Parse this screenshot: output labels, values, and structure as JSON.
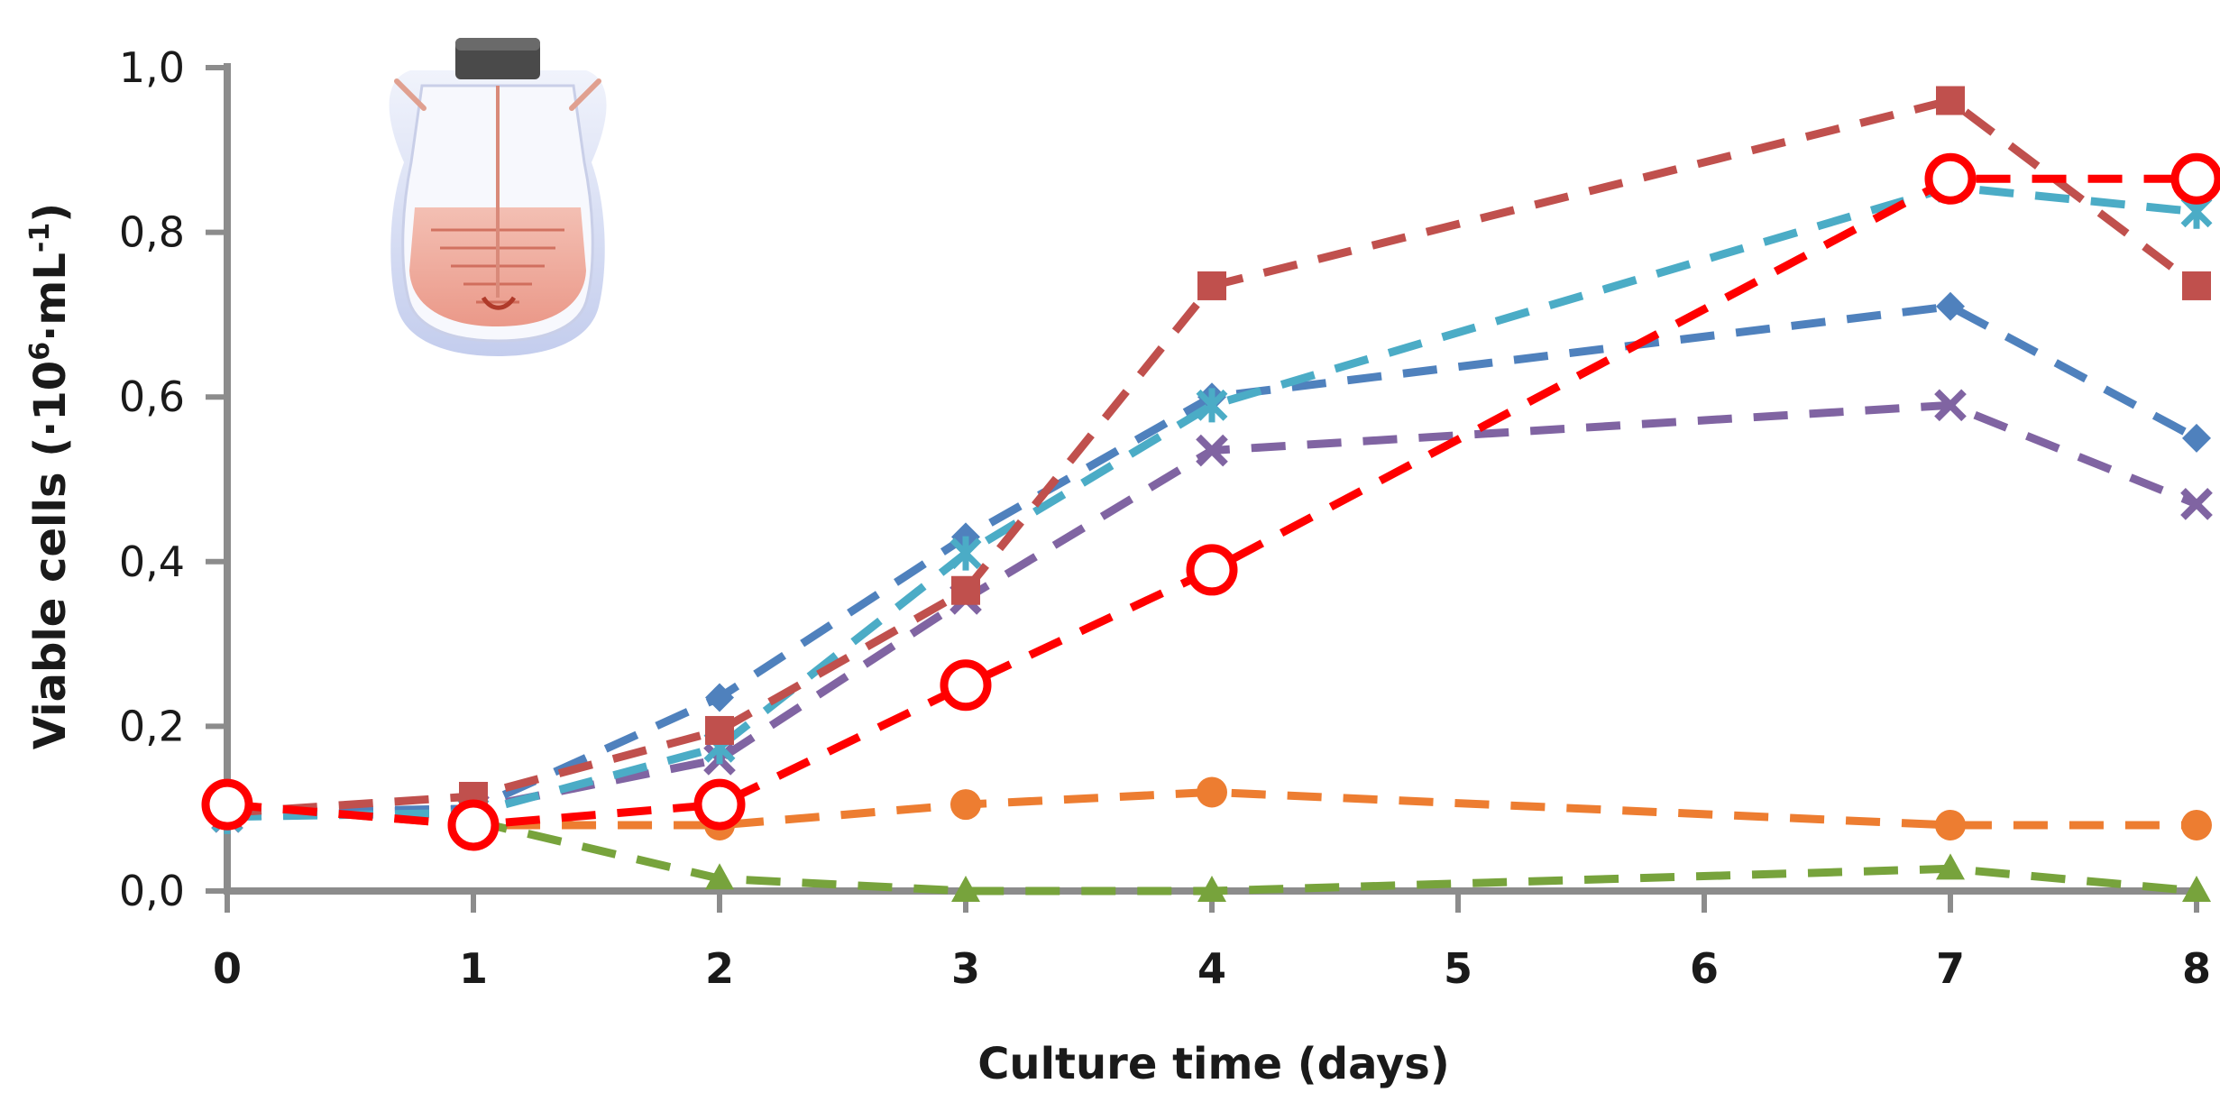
{
  "chart_data": {
    "type": "line",
    "title": "",
    "xlabel": "Culture time (days)",
    "ylabel_parts": [
      "Viable cells (·10",
      "6",
      "·mL",
      "-1",
      ")"
    ],
    "xlim": [
      0,
      8
    ],
    "ylim": [
      0,
      1.0
    ],
    "x_ticks": [
      0,
      1,
      2,
      3,
      4,
      5,
      6,
      7,
      8
    ],
    "x_tick_labels": [
      "0",
      "1",
      "2",
      "3",
      "4",
      "5",
      "6",
      "7",
      "8"
    ],
    "y_ticks": [
      0,
      0.2,
      0.4,
      0.6,
      0.8,
      1.0
    ],
    "y_tick_labels": [
      "0,0",
      "0,2",
      "0,4",
      "0,6",
      "0,8",
      "1,0"
    ],
    "grid": false,
    "legend": "none",
    "series": [
      {
        "color": "#ED7D31",
        "marker": "circle-filled",
        "points": [
          [
            0,
            0.105
          ],
          [
            1,
            0.08
          ],
          [
            2,
            0.08
          ],
          [
            3,
            0.105
          ],
          [
            4,
            0.12
          ],
          [
            7,
            0.08
          ],
          [
            8,
            0.08
          ]
        ]
      },
      {
        "color": "#77A33C",
        "marker": "triangle",
        "points": [
          [
            1,
            0.085
          ],
          [
            2,
            0.015
          ],
          [
            3,
            0.0
          ],
          [
            4,
            0.0
          ],
          [
            7,
            0.027
          ],
          [
            8,
            0.0
          ]
        ]
      },
      {
        "color": "#8064A2",
        "marker": "x",
        "points": [
          [
            0,
            0.09
          ],
          [
            1,
            0.1
          ],
          [
            2,
            0.16
          ],
          [
            3,
            0.355
          ],
          [
            4,
            0.535
          ],
          [
            7,
            0.59
          ],
          [
            8,
            0.47
          ]
        ]
      },
      {
        "color": "#4F81BD",
        "marker": "diamond",
        "points": [
          [
            0,
            0.095
          ],
          [
            1,
            0.1
          ],
          [
            2,
            0.235
          ],
          [
            3,
            0.43
          ],
          [
            4,
            0.6
          ],
          [
            7,
            0.71
          ],
          [
            8,
            0.55
          ]
        ]
      },
      {
        "color": "#4BACC6",
        "marker": "star",
        "points": [
          [
            0,
            0.09
          ],
          [
            1,
            0.095
          ],
          [
            2,
            0.175
          ],
          [
            3,
            0.41
          ],
          [
            4,
            0.59
          ],
          [
            7,
            0.855
          ],
          [
            8,
            0.825
          ]
        ]
      },
      {
        "color": "#C0504D",
        "marker": "square",
        "points": [
          [
            0,
            0.095
          ],
          [
            1,
            0.115
          ],
          [
            2,
            0.195
          ],
          [
            3,
            0.365
          ],
          [
            4,
            0.735
          ],
          [
            7,
            0.96
          ],
          [
            8,
            0.735
          ]
        ]
      },
      {
        "color": "#FF0000",
        "marker": "circle-open",
        "points": [
          [
            0,
            0.105
          ],
          [
            1,
            0.08
          ],
          [
            2,
            0.105
          ],
          [
            3,
            0.25
          ],
          [
            4,
            0.39
          ],
          [
            7,
            0.865
          ],
          [
            8,
            0.865
          ]
        ]
      }
    ]
  }
}
